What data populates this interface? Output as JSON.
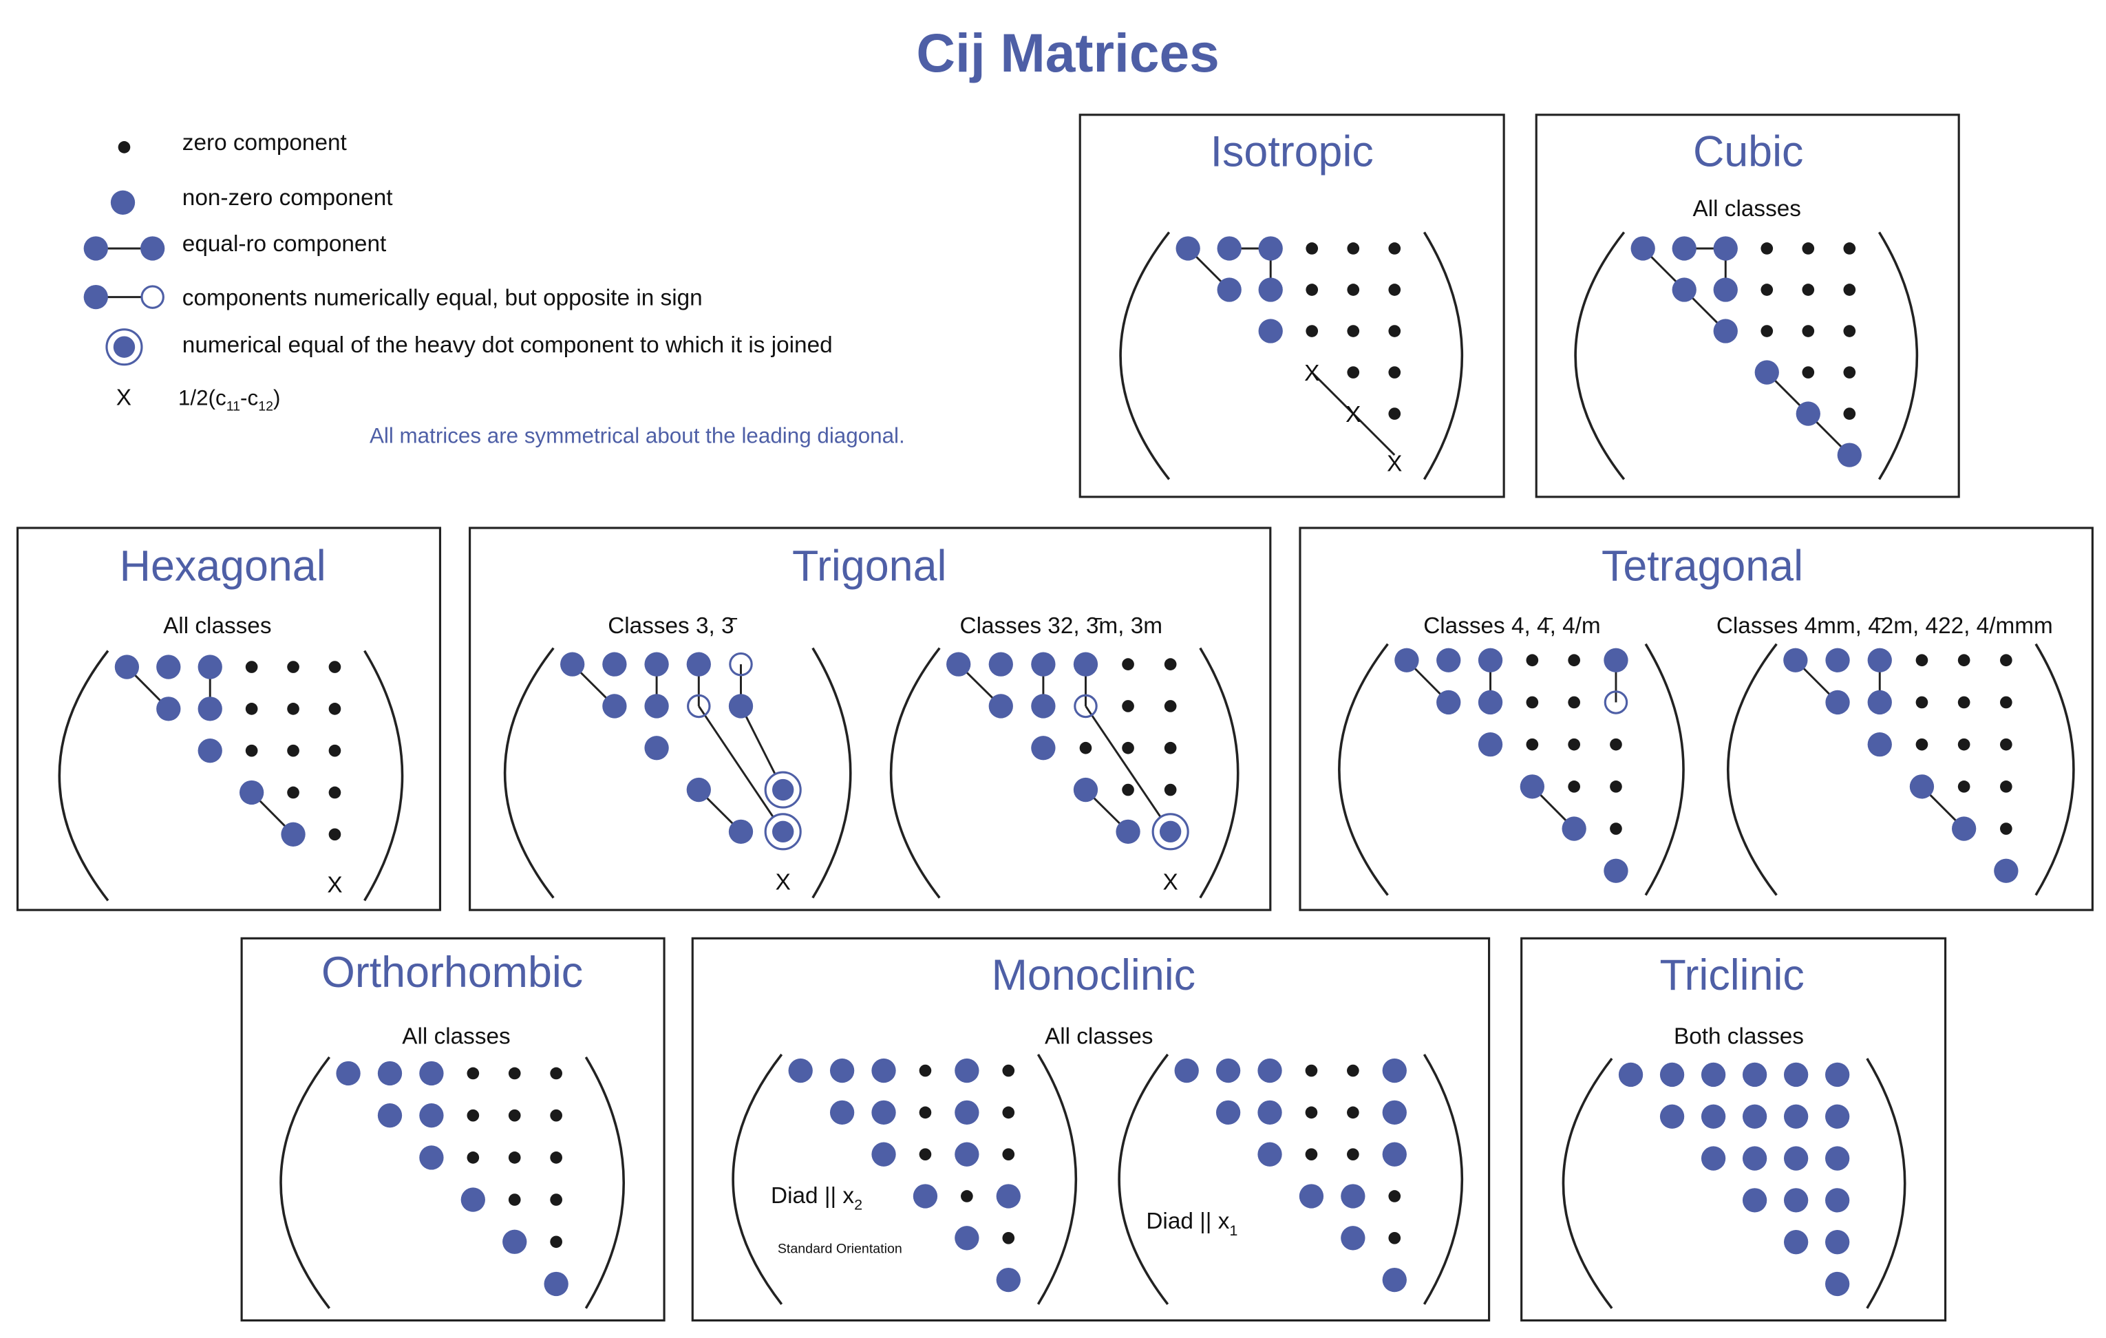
{
  "title": "Cij Matrices",
  "colors": {
    "accent": "#4e5fa6",
    "zero": "#1a1a1a",
    "line": "#222222"
  },
  "legend": {
    "items": [
      {
        "symbol": "zero",
        "label": "zero component"
      },
      {
        "symbol": "nonzero",
        "label": "non-zero component"
      },
      {
        "symbol": "equal",
        "label": "equal-ro component"
      },
      {
        "symbol": "opposite",
        "label": "components numerically equal, but opposite in sign"
      },
      {
        "symbol": "circled",
        "label": "numerical equal of the heavy dot component to which it is joined"
      },
      {
        "symbol": "x",
        "symbol_text": "X",
        "label_main": "1/2(c",
        "sub1": "11",
        "mid": "-c",
        "sub2": "12",
        "end": ")"
      }
    ],
    "note": "All matrices are symmetrical about the leading diagonal."
  },
  "panels": {
    "isotropic": {
      "title": "Isotropic"
    },
    "cubic": {
      "title": "Cubic",
      "subtitle": "All classes"
    },
    "hexagonal": {
      "title": "Hexagonal",
      "subtitle": "All classes"
    },
    "trigonal": {
      "title": "Trigonal",
      "subtitle_a": "Classes 3, 3̄",
      "subtitle_b": "Classes 32, 3̄m, 3m"
    },
    "tetragonal": {
      "title": "Tetragonal",
      "subtitle_a": "Classes 4, 4̄, 4/m",
      "subtitle_b": "Classes 4mm, 4̄2m, 422, 4/mmm"
    },
    "orthorhombic": {
      "title": "Orthorhombic",
      "subtitle": "All classes"
    },
    "monoclinic": {
      "title": "Monoclinic",
      "subtitle": "All classes",
      "diad_a": "Diad || x",
      "diad_a_sub": "2",
      "orientation": "Standard Orientation",
      "diad_b": "Diad || x",
      "diad_b_sub": "1"
    },
    "triclinic": {
      "title": "Triclinic",
      "subtitle": "Both classes"
    }
  },
  "matrices": {
    "isotropic": {
      "rows": [
        "nnnzzz",
        "nnzzz",
        "nzzz",
        "xzz",
        "xz",
        "x"
      ],
      "links": [
        [
          0,
          0,
          1,
          1
        ],
        [
          0,
          1,
          0,
          2
        ],
        [
          0,
          2,
          1,
          2
        ],
        [
          3,
          3,
          4,
          4
        ],
        [
          4,
          4,
          5,
          5
        ]
      ]
    },
    "cubic": {
      "rows": [
        "nnnzzz",
        "nnzzz",
        "nzzz",
        "nzz",
        "nz",
        "n"
      ],
      "links": [
        [
          0,
          0,
          1,
          1
        ],
        [
          0,
          1,
          0,
          2
        ],
        [
          0,
          2,
          1,
          2
        ],
        [
          1,
          1,
          2,
          2
        ],
        [
          3,
          3,
          4,
          4
        ],
        [
          4,
          4,
          5,
          5
        ]
      ]
    },
    "hexagonal": {
      "rows": [
        "nnnzzz",
        "nnzzz",
        "nzzz",
        "nzz",
        "nz",
        "x"
      ],
      "links": [
        [
          0,
          0,
          1,
          1
        ],
        [
          0,
          2,
          1,
          2
        ],
        [
          3,
          3,
          4,
          4
        ]
      ]
    },
    "trigonal_a": {
      "rows": [
        "nnnno-",
        "nnon-",
        "n---",
        "n-c",
        "nc",
        "x"
      ],
      "links": [
        [
          0,
          0,
          1,
          1
        ],
        [
          0,
          2,
          1,
          2
        ],
        [
          0,
          3,
          1,
          3
        ],
        [
          0,
          4,
          1,
          4
        ],
        [
          1,
          3,
          4,
          5
        ],
        [
          1,
          4,
          3,
          5
        ],
        [
          3,
          3,
          4,
          4
        ]
      ]
    },
    "trigonal_b": {
      "rows": [
        "nnnnzz",
        "nnozz",
        "nzzz",
        "nzz",
        "nc",
        "x"
      ],
      "links": [
        [
          0,
          0,
          1,
          1
        ],
        [
          0,
          2,
          1,
          2
        ],
        [
          0,
          3,
          1,
          3
        ],
        [
          1,
          3,
          4,
          5
        ],
        [
          3,
          3,
          4,
          4
        ]
      ]
    },
    "tetragonal_a": {
      "rows": [
        "nnnzzn",
        "nnzzo",
        "nzzz",
        "nzz",
        "nz",
        "n"
      ],
      "links": [
        [
          0,
          0,
          1,
          1
        ],
        [
          0,
          2,
          1,
          2
        ],
        [
          0,
          5,
          1,
          5
        ],
        [
          3,
          3,
          4,
          4
        ]
      ]
    },
    "tetragonal_b": {
      "rows": [
        "nnnzzz",
        "nnzzz",
        "nzzz",
        "nzz",
        "nz",
        "n"
      ],
      "links": [
        [
          0,
          0,
          1,
          1
        ],
        [
          0,
          2,
          1,
          2
        ],
        [
          3,
          3,
          4,
          4
        ]
      ]
    },
    "orthorhombic": {
      "rows": [
        "nnnzzz",
        "nnzzz",
        "nzzz",
        "nzz",
        "nz",
        "n"
      ],
      "links": []
    },
    "monoclinic_a": {
      "rows": [
        "nnnznz",
        "nnznz",
        "nznz",
        "nzn",
        "nz",
        "n"
      ],
      "links": []
    },
    "monoclinic_b": {
      "rows": [
        "nnnzzn",
        "nnzzn",
        "nzzn",
        "nnz",
        "nz",
        "n"
      ],
      "links": []
    },
    "triclinic": {
      "rows": [
        "nnnnnn",
        "nnnnn",
        "nnnn",
        "nnn",
        "nn",
        "n"
      ],
      "links": []
    }
  }
}
